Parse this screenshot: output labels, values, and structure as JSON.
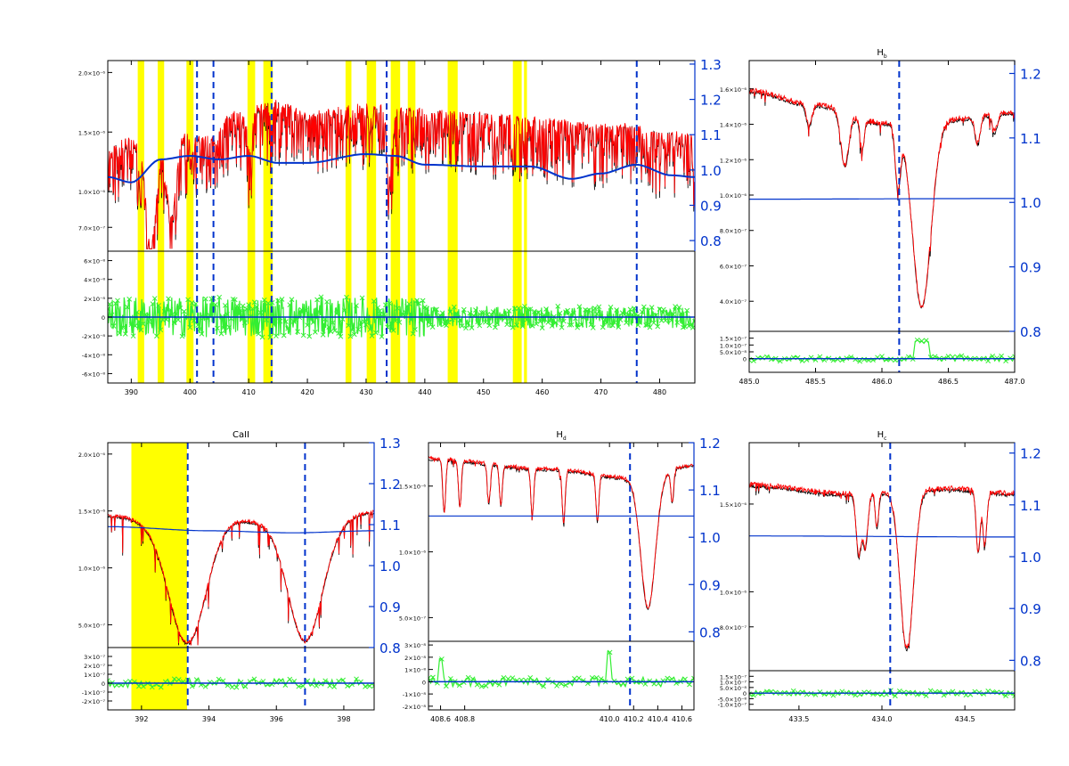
{
  "figure": {
    "background": "#ffffff"
  },
  "colors": {
    "observed": "#000000",
    "model": "#ff0000",
    "continuum": "#0033cc",
    "residual": "#33ee33",
    "mask": "#ffff00",
    "marker": "#0033cc",
    "axis": "#000000",
    "right_axis": "#0033cc"
  },
  "chart_data": [
    {
      "id": "overview",
      "type": "line",
      "title": "",
      "x": {
        "min": 386,
        "max": 486,
        "ticks": [
          390,
          400,
          410,
          420,
          430,
          440,
          450,
          460,
          470,
          480
        ],
        "tick_labels": [
          "390",
          "400",
          "410",
          "420",
          "430",
          "440",
          "450",
          "460",
          "470",
          "480"
        ]
      },
      "top": {
        "ylim": [
          0.5,
          2.1
        ],
        "y_ticks": [
          0.7,
          1.0,
          1.5,
          2.0
        ],
        "y_tick_labels": [
          "7.0×10⁻⁷",
          "1.0×10⁻⁶",
          "1.5×10⁻⁶",
          "2.0×10⁻⁶"
        ],
        "right": {
          "ylim": [
            0.77,
            1.31
          ],
          "ticks": [
            0.8,
            0.9,
            1.0,
            1.1,
            1.2,
            1.3
          ],
          "tick_labels": [
            "0.8",
            "0.9",
            "1.0",
            "1.1",
            "1.2",
            "1.3"
          ]
        }
      },
      "bottom": {
        "ylim": [
          -7,
          7
        ],
        "y_ticks": [
          -6,
          -4,
          -2,
          0,
          2,
          4,
          6
        ],
        "y_tick_labels": [
          "-6×10⁻⁸",
          "-4×10⁻⁸",
          "-2×10⁻⁸",
          "0",
          "2×10⁻⁸",
          "4×10⁻⁸",
          "6×10⁻⁸"
        ]
      },
      "markers": [
        401.2,
        404.0,
        413.9,
        433.5,
        476.1
      ],
      "masks": [
        [
          391.1,
          392.2
        ],
        [
          394.5,
          395.6
        ],
        [
          399.4,
          400.6
        ],
        [
          409.8,
          411.1
        ],
        [
          412.5,
          414.1
        ],
        [
          426.5,
          427.5
        ],
        [
          430.1,
          431.7
        ],
        [
          434.2,
          435.8
        ],
        [
          437.1,
          438.4
        ],
        [
          443.9,
          445.6
        ],
        [
          455.0,
          456.5
        ],
        [
          456.9,
          457.4
        ]
      ],
      "continuum_nodes": [
        [
          386,
          0.98
        ],
        [
          390,
          0.965
        ],
        [
          395,
          1.03
        ],
        [
          400,
          1.04
        ],
        [
          405,
          1.03
        ],
        [
          410,
          1.04
        ],
        [
          415,
          1.02
        ],
        [
          420,
          1.02
        ],
        [
          430,
          1.045
        ],
        [
          435,
          1.04
        ],
        [
          440,
          1.015
        ],
        [
          450,
          1.01
        ],
        [
          458,
          1.01
        ],
        [
          465,
          0.975
        ],
        [
          470,
          0.99
        ],
        [
          476,
          1.015
        ],
        [
          482,
          0.985
        ],
        [
          486,
          0.98
        ]
      ]
    },
    {
      "id": "hbeta",
      "type": "line",
      "title": "H_b",
      "title_base": "H",
      "title_sub": "b",
      "x": {
        "min": 485.0,
        "max": 487.0,
        "ticks": [
          485.0,
          485.5,
          486.0,
          486.5,
          487.0
        ],
        "tick_labels": [
          "485.0",
          "485.5",
          "486.0",
          "486.5",
          "487.0"
        ]
      },
      "top": {
        "ylim": [
          0.23,
          1.76
        ],
        "y_ticks": [
          0.4,
          0.6,
          0.8,
          1.0,
          1.2,
          1.4,
          1.6
        ],
        "y_tick_labels": [
          "4.0×10⁻⁷",
          "6.0×10⁻⁷",
          "8.0×10⁻⁷",
          "1.0×10⁻⁶",
          "1.2×10⁻⁶",
          "1.4×10⁻⁶",
          "1.6×10⁻⁶"
        ],
        "right": {
          "ylim": [
            0.8,
            1.22
          ],
          "ticks": [
            0.8,
            0.9,
            1.0,
            1.1,
            1.2
          ],
          "tick_labels": [
            "0.8",
            "0.9",
            "1.0",
            "1.1",
            "1.2"
          ]
        }
      },
      "bottom": {
        "ylim": [
          -1.0,
          2.0
        ],
        "y_ticks": [
          0,
          0.5,
          1.0,
          1.5
        ],
        "y_tick_labels": [
          "0",
          "5.0×10⁻⁸",
          "1.0×10⁻⁷",
          "1.5×10⁻⁷"
        ]
      },
      "markers": [
        486.13
      ],
      "masks": [],
      "continuum_nodes": [
        [
          485.0,
          1.005
        ],
        [
          487.0,
          1.006
        ]
      ]
    },
    {
      "id": "caii",
      "type": "line",
      "title": "CaII",
      "x": {
        "min": 391.0,
        "max": 398.9,
        "ticks": [
          392,
          394,
          396,
          398
        ],
        "tick_labels": [
          "392",
          "394",
          "396",
          "398"
        ]
      },
      "top": {
        "ylim": [
          0.3,
          2.1
        ],
        "y_ticks": [
          0.5,
          1.0,
          1.5,
          2.0
        ],
        "y_tick_labels": [
          "5.0×10⁻⁷",
          "1.0×10⁻⁶",
          "1.5×10⁻⁶",
          "2.0×10⁻⁶"
        ],
        "right": {
          "ylim": [
            0.8,
            1.3
          ],
          "ticks": [
            0.8,
            0.9,
            1.0,
            1.1,
            1.2,
            1.3
          ],
          "tick_labels": [
            "0.8",
            "0.9",
            "1.0",
            "1.1",
            "1.2",
            "1.3"
          ]
        }
      },
      "bottom": {
        "ylim": [
          -3,
          4
        ],
        "y_ticks": [
          -2,
          -1,
          0,
          1,
          2,
          3
        ],
        "y_tick_labels": [
          "-2×10⁻⁷",
          "-1×10⁻⁷",
          "0",
          "1×10⁻⁷",
          "2×10⁻⁷",
          "3×10⁻⁷"
        ]
      },
      "markers": [
        393.37,
        396.85
      ],
      "masks": [
        [
          391.7,
          393.35
        ]
      ],
      "continuum_nodes": [
        [
          391.0,
          1.095
        ],
        [
          394.0,
          1.085
        ],
        [
          396.5,
          1.08
        ],
        [
          398.9,
          1.085
        ]
      ]
    },
    {
      "id": "hdelta",
      "type": "line",
      "title": "H_d",
      "title_base": "H",
      "title_sub": "d",
      "x": {
        "min": 408.5,
        "max": 410.7,
        "ticks": [
          408.6,
          408.8,
          410.0,
          410.2,
          410.4,
          410.6
        ],
        "tick_labels": [
          "408.6",
          "408.8",
          "410.0",
          "410.2",
          "410.4",
          "410.6"
        ]
      },
      "top": {
        "ylim": [
          0.32,
          1.83
        ],
        "y_ticks": [
          0.5,
          1.0,
          1.5
        ],
        "y_tick_labels": [
          "5.0×10⁻⁷",
          "1.0×10⁻⁶",
          "1.5×10⁻⁶"
        ],
        "right": {
          "ylim": [
            0.78,
            1.2
          ],
          "ticks": [
            0.8,
            0.9,
            1.0,
            1.1,
            1.2
          ],
          "tick_labels": [
            "0.8",
            "0.9",
            "1.0",
            "1.1",
            "1.2"
          ]
        }
      },
      "bottom": {
        "ylim": [
          -2.3,
          3.3
        ],
        "y_ticks": [
          -2,
          -1,
          0,
          1,
          2,
          3
        ],
        "y_tick_labels": [
          "-2×10⁻⁸",
          "-1×10⁻⁸",
          "0",
          "1×10⁻⁸",
          "2×10⁻⁸",
          "3×10⁻⁸"
        ]
      },
      "markers": [
        410.17
      ],
      "masks": [],
      "continuum_nodes": [
        [
          408.5,
          1.045
        ],
        [
          410.7,
          1.045
        ]
      ]
    },
    {
      "id": "hgamma",
      "type": "line",
      "title": "H_c",
      "title_base": "H",
      "title_sub": "c",
      "x": {
        "min": 433.2,
        "max": 434.8,
        "ticks": [
          433.5,
          434.0,
          434.5
        ],
        "tick_labels": [
          "433.5",
          "434.0",
          "434.5"
        ]
      },
      "top": {
        "ylim": [
          0.55,
          1.85
        ],
        "y_ticks": [
          0.8,
          1.0,
          1.5
        ],
        "y_tick_labels": [
          "8.0×10⁻⁷",
          "1.0×10⁻⁶",
          "1.5×10⁻⁶"
        ],
        "right": {
          "ylim": [
            0.78,
            1.22
          ],
          "ticks": [
            0.8,
            0.9,
            1.0,
            1.1,
            1.2
          ],
          "tick_labels": [
            "0.8",
            "0.9",
            "1.0",
            "1.1",
            "1.2"
          ]
        }
      },
      "bottom": {
        "ylim": [
          -1.5,
          2.0
        ],
        "y_ticks": [
          -1.0,
          -0.5,
          0,
          0.5,
          1.0,
          1.5
        ],
        "y_tick_labels": [
          "-1.0×10⁻⁷",
          "-5.0×10⁻⁸",
          "0",
          "5.0×10⁻⁸",
          "1.0×10⁻⁷",
          "1.5×10⁻⁷"
        ]
      },
      "markers": [
        434.05
      ],
      "masks": [],
      "continuum_nodes": [
        [
          433.2,
          1.04
        ],
        [
          434.8,
          1.038
        ]
      ]
    }
  ]
}
